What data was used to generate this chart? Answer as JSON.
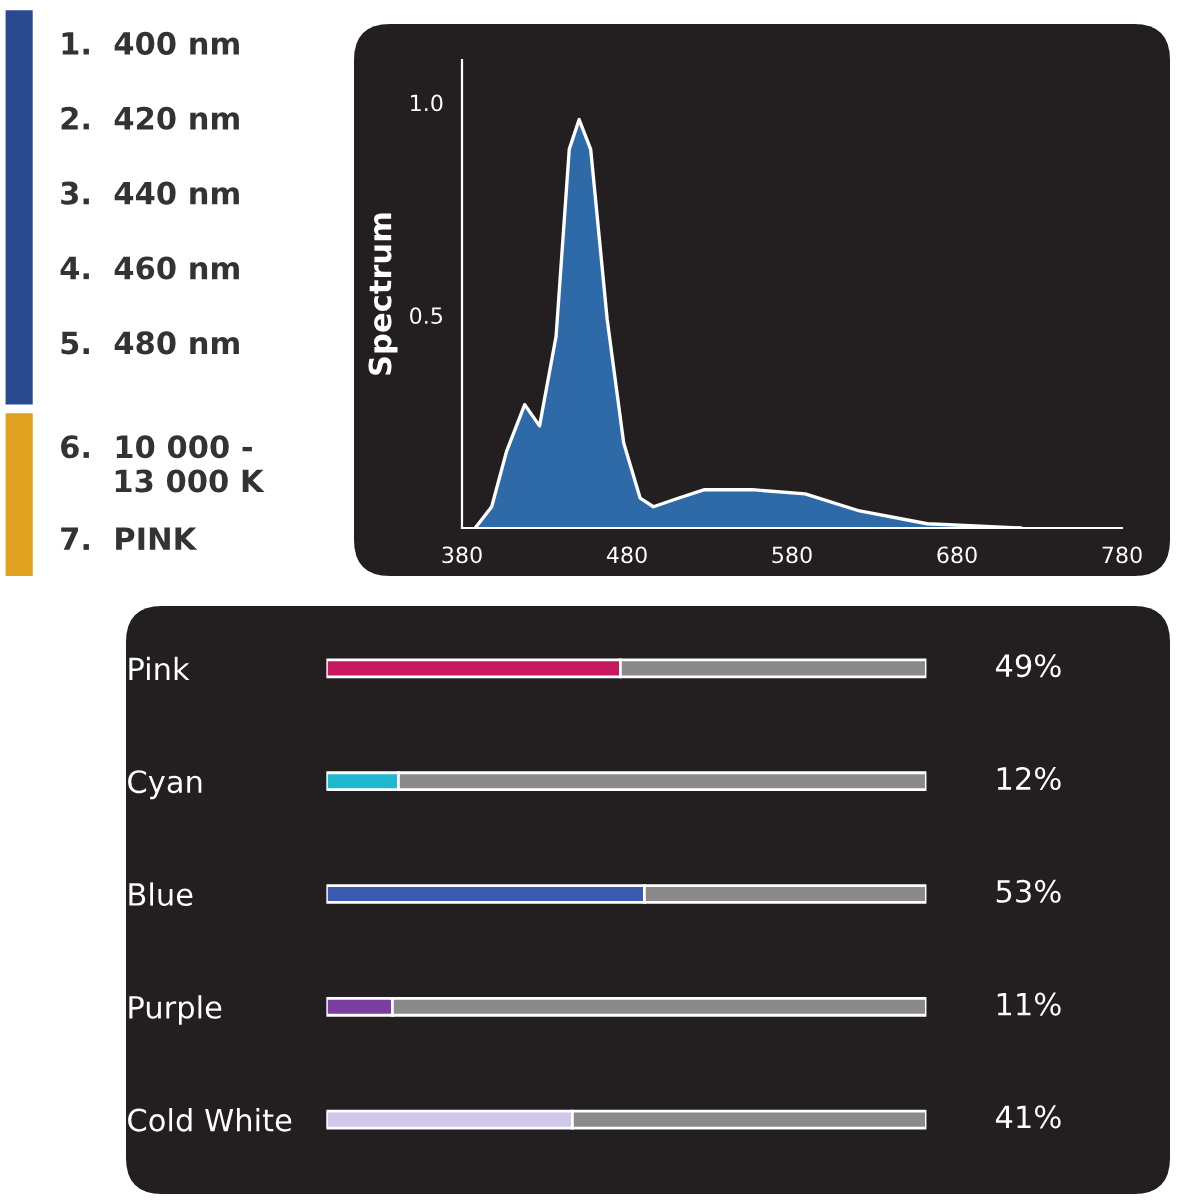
{
  "chart_data": [
    {
      "type": "other",
      "annotations": [
        "1.  400 nm",
        "2.  420 nm",
        "3.  440 nm",
        "4.  460 nm",
        "5.  480 nm",
        "6.  10 000 -\n     13 000 K",
        "7.  PINK"
      ]
    },
    {
      "type": "area",
      "ylabel": "Spectrum",
      "color": "#2f6aa8",
      "x": [
        388,
        398,
        407,
        418,
        427,
        437,
        445,
        451,
        458,
        468,
        478,
        488,
        496,
        511,
        527,
        556,
        588,
        621,
        662,
        719
      ],
      "values": [
        0,
        0.05,
        0.18,
        0.29,
        0.24,
        0.45,
        0.89,
        0.96,
        0.89,
        0.49,
        0.2,
        0.07,
        0.05,
        0.07,
        0.09,
        0.09,
        0.08,
        0.04,
        0.01,
        0
      ],
      "xlim": [
        380,
        780
      ],
      "xticks": [
        380,
        480,
        580,
        680,
        780
      ],
      "ylim": [
        0,
        1.1
      ],
      "yticks": [
        0.5,
        {
          "value": 1,
          "label": "1.0"
        }
      ],
      "grid": false
    },
    {
      "type": "bar",
      "orientation": "horizontal",
      "stacked": true,
      "categories": [
        "Pink",
        "Cyan",
        "Blue",
        "Purple",
        "Cold White"
      ],
      "series": [
        {
          "colors": [
            "#c8185f",
            "#1fb8d0",
            "#3b5bb0",
            "#7a3ea0",
            "#cfc8ea"
          ],
          "values": [
            49,
            12,
            53,
            11,
            41
          ],
          "value_labels": [
            "49%",
            "12%",
            "53%",
            "11%",
            "41%"
          ]
        },
        {
          "color": "#8a8a8a",
          "values": [
            51,
            88,
            47,
            89,
            59
          ]
        }
      ],
      "xlim": [
        0,
        100
      ],
      "tick_labels": "y",
      "grid": false
    }
  ]
}
